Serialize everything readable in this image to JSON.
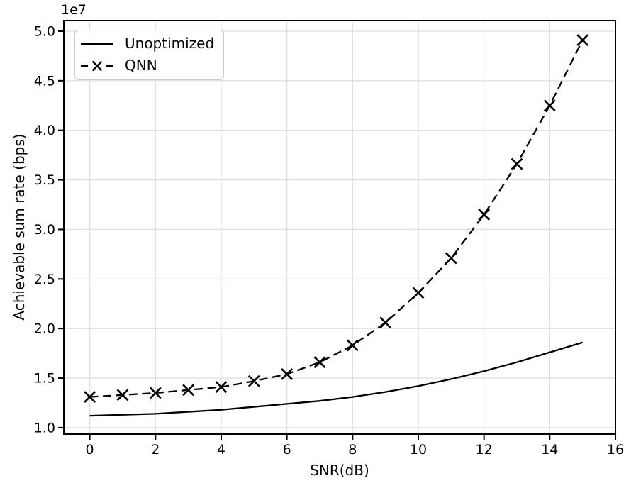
{
  "figure": {
    "background": "#ffffff"
  },
  "chart_data": {
    "type": "line",
    "title": "",
    "xlabel": "SNR(dB)",
    "ylabel": "Achievable sum rate (bps)",
    "y_offset_label": "1e7",
    "y_unit_multiplier": 10000000,
    "x": [
      0,
      1,
      2,
      3,
      4,
      5,
      6,
      7,
      8,
      9,
      10,
      11,
      12,
      13,
      14,
      15
    ],
    "series": [
      {
        "name": "Unoptimized",
        "line_style": "solid",
        "marker": "none",
        "color": "#000000",
        "values": [
          1.12,
          1.13,
          1.14,
          1.16,
          1.18,
          1.21,
          1.24,
          1.27,
          1.31,
          1.36,
          1.42,
          1.49,
          1.57,
          1.66,
          1.76,
          1.86
        ]
      },
      {
        "name": "QNN",
        "line_style": "dashed",
        "marker": "x",
        "color": "#000000",
        "values": [
          1.31,
          1.33,
          1.35,
          1.38,
          1.41,
          1.47,
          1.54,
          1.66,
          1.83,
          2.06,
          2.36,
          2.71,
          3.15,
          3.66,
          4.25,
          4.91
        ]
      }
    ],
    "xlim": [
      -0.79,
      16.0
    ],
    "ylim": [
      0.935,
      5.107
    ],
    "xticks": [
      0,
      2,
      4,
      6,
      8,
      10,
      12,
      14,
      16
    ],
    "xtick_labels": [
      "0",
      "2",
      "4",
      "6",
      "8",
      "10",
      "12",
      "14",
      "16"
    ],
    "yticks": [
      1.0,
      1.5,
      2.0,
      2.5,
      3.0,
      3.5,
      4.0,
      4.5,
      5.0
    ],
    "ytick_labels": [
      "1.0",
      "1.5",
      "2.0",
      "2.5",
      "3.0",
      "3.5",
      "4.0",
      "4.5",
      "5.0"
    ],
    "grid": true,
    "legend_position": "upper left"
  },
  "legend": {
    "items": [
      {
        "label": "Unoptimized"
      },
      {
        "label": "QNN"
      }
    ]
  },
  "colors": {
    "line": "#000000",
    "grid": "#e0e0e0",
    "spine": "#000000",
    "text": "#000000",
    "legend_border": "#cccccc"
  }
}
